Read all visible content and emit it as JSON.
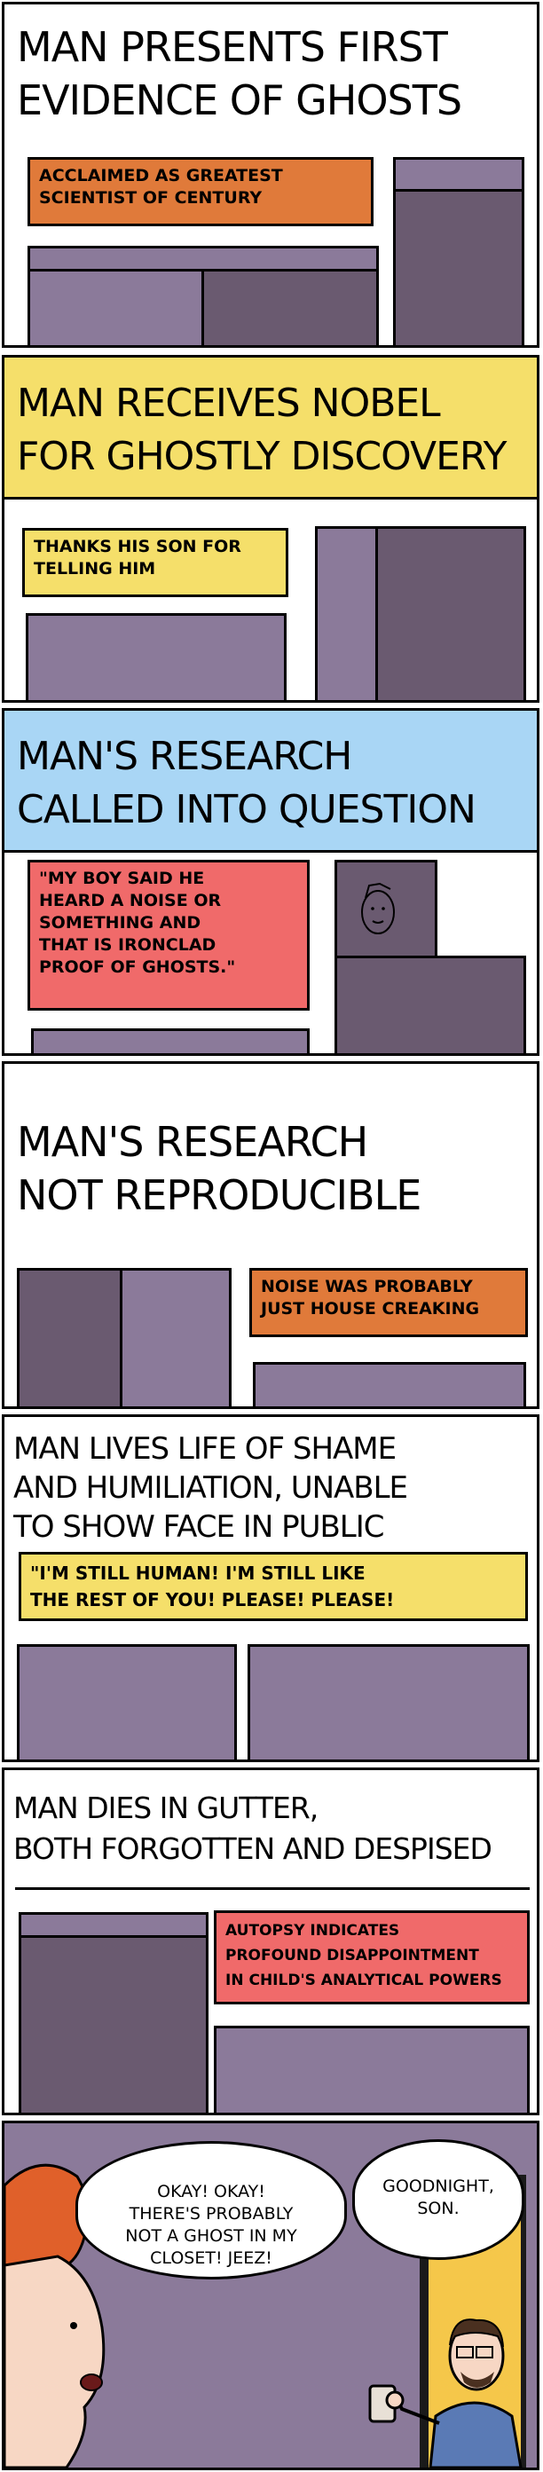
{
  "panels": [
    {
      "headline": "MAN PRESENTS FIRST\nEVIDENCE OF GHOSTS",
      "caption": "ACCLAIMED AS GREATEST\nSCIENTIST OF CENTURY",
      "caption_color": "#e07a3a"
    },
    {
      "headline": "MAN RECEIVES NOBEL\nFOR GHOSTLY DISCOVERY",
      "headline_bg": "#f5df6a",
      "caption": "THANKS HIS SON FOR\nTELLING HIM",
      "caption_color": "#f5df6a"
    },
    {
      "headline": "MAN'S RESEARCH\nCALLED INTO QUESTION",
      "headline_bg": "#a9d6f5",
      "caption": "\"MY BOY SAID HE\nHEARD A NOISE OR\nSOMETHING AND\nTHAT IS IRONCLAD\nPROOF OF GHOSTS.\"",
      "caption_color": "#f06a6a"
    },
    {
      "headline": "MAN'S RESEARCH\nNOT REPRODUCIBLE",
      "caption": "NOISE WAS PROBABLY\nJUST HOUSE CREAKING",
      "caption_color": "#e07a3a"
    },
    {
      "headline": "MAN LIVES LIFE OF SHAME\nAND HUMILIATION, UNABLE\nTO SHOW FACE IN PUBLIC",
      "caption": "\"I'M STILL HUMAN! I'M STILL LIKE\nTHE REST OF YOU! PLEASE! PLEASE!",
      "caption_color": "#f5df6a"
    },
    {
      "headline": "MAN DIES IN GUTTER,\nBOTH FORGOTTEN AND DESPISED",
      "caption": "AUTOPSY INDICATES\nPROFOUND DISAPPOINTMENT\nIN CHILD'S ANALYTICAL POWERS",
      "caption_color": "#f06a6a"
    },
    {
      "child_speech": "OKAY! OKAY!\nTHERE'S PROBABLY\nNOT A GHOST IN MY\nCLOSET! JEEZ!",
      "father_speech": "GOODNIGHT,\nSON."
    }
  ],
  "colors": {
    "purple_light": "#8b7a9a",
    "purple_dark": "#6a5a70",
    "hair": "#e0602a",
    "skin": "#f7d7c4",
    "shirt": "#5a7ab5",
    "door_light": "#f5c74a"
  }
}
